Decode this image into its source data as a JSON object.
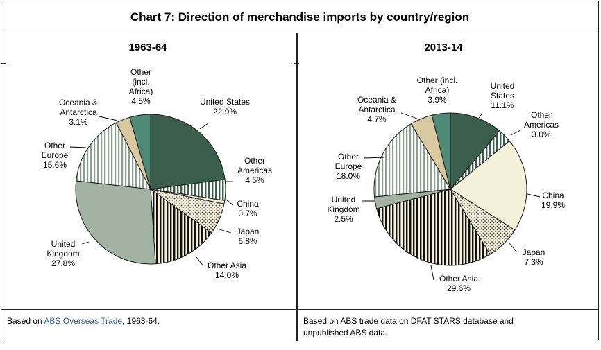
{
  "title": "Chart 7: Direction of merchandise imports by country/region",
  "chart_data": [
    {
      "type": "pie",
      "title": "1963-64",
      "slices": [
        {
          "label": "United States",
          "value": 22.9,
          "display": "22.9%",
          "fill": "dark-green"
        },
        {
          "label": "Other Americas",
          "value": 4.5,
          "display": "4.5%",
          "fill": "dark-green-stripes"
        },
        {
          "label": "China",
          "value": 0.7,
          "display": "0.7%",
          "fill": "cream"
        },
        {
          "label": "Japan",
          "value": 6.8,
          "display": "6.8%",
          "fill": "dots"
        },
        {
          "label": "Other Asia",
          "value": 14.0,
          "display": "14.0%",
          "fill": "black-stripes"
        },
        {
          "label": "United Kingdom",
          "value": 27.8,
          "display": "27.8%",
          "fill": "sage"
        },
        {
          "label": "Other Europe",
          "value": 15.6,
          "display": "15.6%",
          "fill": "grey-stripes"
        },
        {
          "label": "Oceania & Antarctica",
          "value": 3.1,
          "display": "3.1%",
          "fill": "tan"
        },
        {
          "label": "Other (incl. Africa)",
          "value": 4.5,
          "display": "4.5%",
          "fill": "teal"
        }
      ],
      "source": {
        "prefix": "Based on ",
        "ref": "ABS Overseas Trade",
        "suffix": ", 1963-64."
      }
    },
    {
      "type": "pie",
      "title": "2013-14",
      "slices": [
        {
          "label": "United States",
          "value": 11.1,
          "display": "11.1%",
          "fill": "dark-green"
        },
        {
          "label": "Other Americas",
          "value": 3.0,
          "display": "3.0%",
          "fill": "dark-green-stripes"
        },
        {
          "label": "China",
          "value": 19.9,
          "display": "19.9%",
          "fill": "cream"
        },
        {
          "label": "Japan",
          "value": 7.3,
          "display": "7.3%",
          "fill": "dots"
        },
        {
          "label": "Other Asia",
          "value": 29.6,
          "display": "29.6%",
          "fill": "black-stripes"
        },
        {
          "label": "United Kingdom",
          "value": 2.5,
          "display": "2.5%",
          "fill": "sage"
        },
        {
          "label": "Other Europe",
          "value": 18.0,
          "display": "18.0%",
          "fill": "grey-stripes"
        },
        {
          "label": "Oceania & Antarctica",
          "value": 4.7,
          "display": "4.7%",
          "fill": "tan"
        },
        {
          "label": "Other (incl. Africa)",
          "value": 3.9,
          "display": "3.9%",
          "fill": "teal"
        }
      ],
      "source": {
        "line1": "Based on ABS trade data on DFAT STARS database and",
        "line2": "unpublished ABS data."
      }
    }
  ],
  "colors": {
    "dark_green": "#3b5e4c",
    "sage": "#a3b3a3",
    "cream": "#f5f0da",
    "tan": "#d9c9a0",
    "teal": "#4f8a76",
    "stripe_light": "#8c9e8e",
    "link": "#2a5a8c"
  }
}
